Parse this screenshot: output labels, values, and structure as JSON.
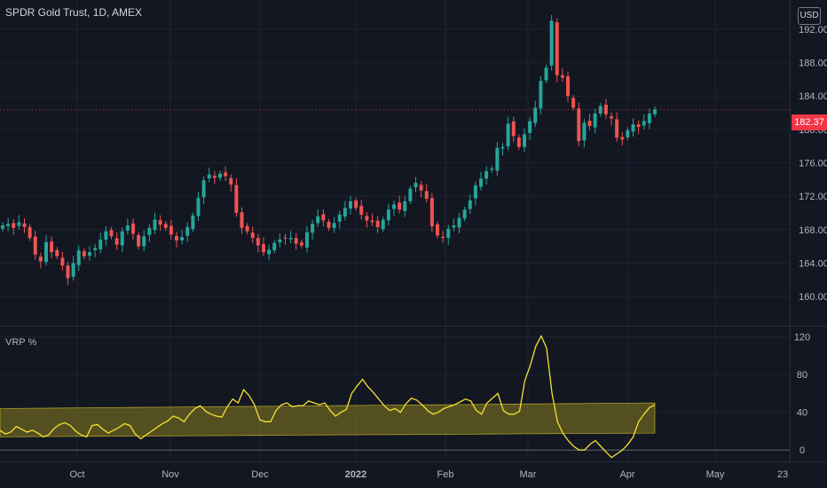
{
  "header": {
    "title": "SPDR Gold Trust, 1D, AMEX",
    "currency": "USD"
  },
  "indicator": {
    "label": "VRP %"
  },
  "colors": {
    "up": "#26a69a",
    "down": "#ef5350",
    "vrp_line": "#f5e12f",
    "band_fill": "#8a7d1f",
    "background": "#131722",
    "grid": "#1f2331"
  },
  "chart_data": [
    {
      "type": "candlestick",
      "title": "SPDR Gold Trust, 1D, AMEX",
      "x_ticks": [
        "Oct",
        "Nov",
        "Dec",
        "2022",
        "Feb",
        "Mar",
        "Apr",
        "May",
        "23"
      ],
      "y_ticks": [
        160,
        164,
        168,
        172,
        176,
        180,
        184,
        188,
        192
      ],
      "ylim": [
        156.5,
        195.5
      ],
      "last_price": "182.37",
      "closes": [
        168.5,
        168.7,
        168.2,
        168.9,
        168.3,
        167.0,
        165.0,
        164.2,
        166.5,
        165.3,
        164.8,
        163.7,
        162.2,
        164.0,
        165.5,
        164.8,
        165.3,
        165.8,
        166.8,
        167.8,
        167.2,
        166.2,
        167.8,
        168.5,
        167.5,
        166.0,
        167.2,
        168.2,
        169.2,
        168.6,
        168.2,
        167.4,
        166.7,
        167.1,
        168.3,
        169.7,
        171.8,
        173.9,
        174.6,
        174.2,
        174.7,
        174.4,
        173.4,
        170.0,
        168.2,
        167.8,
        167.0,
        166.1,
        165.3,
        165.6,
        166.4,
        166.8,
        167.0,
        167.0,
        166.3,
        166.1,
        167.7,
        168.7,
        169.6,
        169.1,
        168.2,
        168.8,
        169.8,
        170.6,
        171.4,
        170.6,
        169.8,
        169.1,
        168.9,
        168.3,
        169.2,
        170.4,
        171.0,
        170.4,
        171.4,
        172.9,
        173.6,
        172.7,
        171.7,
        168.4,
        167.3,
        167.0,
        168.1,
        168.5,
        169.4,
        170.4,
        171.5,
        173.3,
        174.1,
        175.0,
        175.3,
        177.8,
        177.9,
        180.7,
        179.2,
        177.9,
        179.4,
        181.0,
        182.6,
        185.8,
        187.4,
        193.0,
        186.5,
        186.2,
        184.0,
        182.6,
        178.6,
        180.8,
        180.4,
        181.9,
        182.8,
        181.8,
        181.3,
        179.0,
        178.8,
        179.9,
        180.6,
        180.3,
        181.0,
        181.9,
        182.4
      ],
      "y_unit": "USD"
    },
    {
      "type": "line",
      "title": "VRP %",
      "y_ticks": [
        0,
        40,
        80,
        120
      ],
      "ylim": [
        -12,
        130
      ],
      "series": [
        {
          "values": [
            21,
            17,
            19,
            25,
            22,
            19,
            21,
            18,
            14,
            16,
            23,
            27,
            29,
            26,
            20,
            16,
            14,
            26,
            27,
            22,
            18,
            21,
            24,
            28,
            26,
            17,
            12,
            16,
            20,
            24,
            28,
            31,
            36,
            34,
            30,
            38,
            44,
            47,
            41,
            38,
            36,
            35,
            46,
            54,
            50,
            64,
            58,
            48,
            32,
            30,
            30,
            42,
            48,
            50,
            46,
            47,
            47,
            52,
            50,
            48,
            50,
            42,
            36,
            40,
            43,
            60,
            68,
            75,
            67,
            61,
            54,
            47,
            42,
            44,
            40,
            49,
            55,
            53,
            48,
            42,
            38,
            40,
            44,
            46,
            48,
            51,
            54,
            52,
            42,
            38,
            50,
            55,
            60,
            42,
            38,
            38,
            41,
            74,
            90,
            110,
            121,
            108,
            60,
            30,
            18,
            10,
            4,
            0,
            0,
            6,
            10,
            4,
            -2,
            -8,
            -4,
            0,
            6,
            14,
            30,
            38,
            45,
            48
          ]
        },
        {
          "values": []
        }
      ]
    }
  ]
}
